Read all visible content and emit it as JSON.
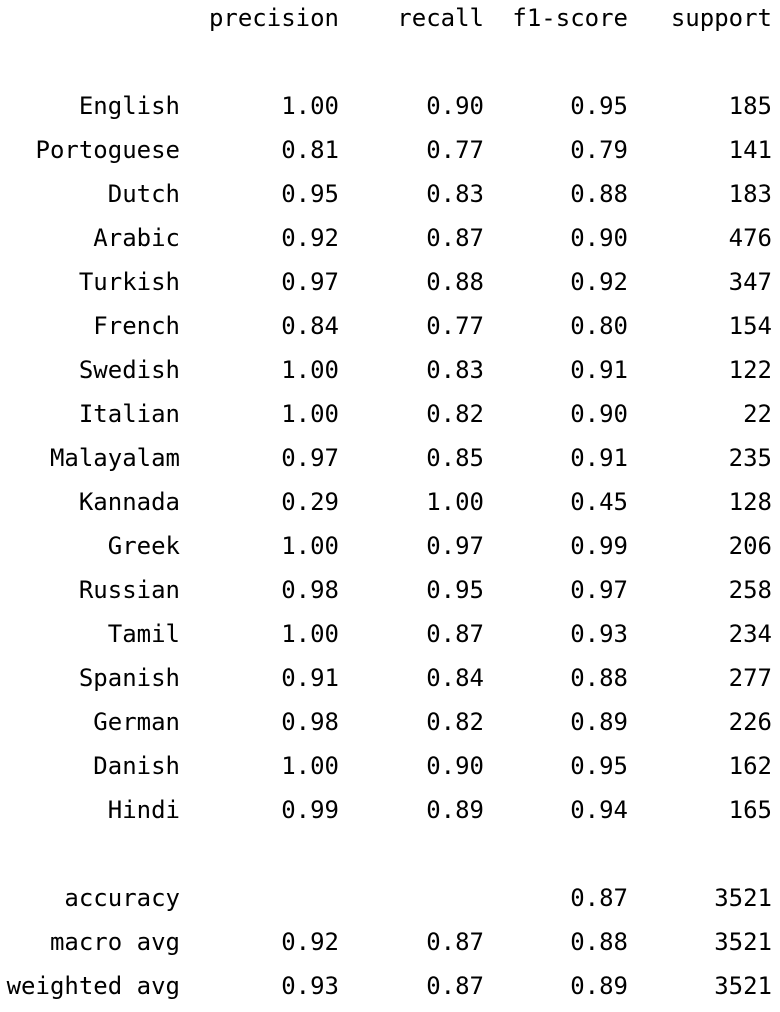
{
  "header": {
    "precision": "precision",
    "recall": "recall",
    "f1_score": "f1-score",
    "support": "support"
  },
  "rows": [
    {
      "label": "English",
      "precision": "1.00",
      "recall": "0.90",
      "f1": "0.95",
      "support": "185"
    },
    {
      "label": "Portoguese",
      "precision": "0.81",
      "recall": "0.77",
      "f1": "0.79",
      "support": "141"
    },
    {
      "label": "Dutch",
      "precision": "0.95",
      "recall": "0.83",
      "f1": "0.88",
      "support": "183"
    },
    {
      "label": "Arabic",
      "precision": "0.92",
      "recall": "0.87",
      "f1": "0.90",
      "support": "476"
    },
    {
      "label": "Turkish",
      "precision": "0.97",
      "recall": "0.88",
      "f1": "0.92",
      "support": "347"
    },
    {
      "label": "French",
      "precision": "0.84",
      "recall": "0.77",
      "f1": "0.80",
      "support": "154"
    },
    {
      "label": "Swedish",
      "precision": "1.00",
      "recall": "0.83",
      "f1": "0.91",
      "support": "122"
    },
    {
      "label": "Italian",
      "precision": "1.00",
      "recall": "0.82",
      "f1": "0.90",
      "support": "22"
    },
    {
      "label": "Malayalam",
      "precision": "0.97",
      "recall": "0.85",
      "f1": "0.91",
      "support": "235"
    },
    {
      "label": "Kannada",
      "precision": "0.29",
      "recall": "1.00",
      "f1": "0.45",
      "support": "128"
    },
    {
      "label": "Greek",
      "precision": "1.00",
      "recall": "0.97",
      "f1": "0.99",
      "support": "206"
    },
    {
      "label": "Russian",
      "precision": "0.98",
      "recall": "0.95",
      "f1": "0.97",
      "support": "258"
    },
    {
      "label": "Tamil",
      "precision": "1.00",
      "recall": "0.87",
      "f1": "0.93",
      "support": "234"
    },
    {
      "label": "Spanish",
      "precision": "0.91",
      "recall": "0.84",
      "f1": "0.88",
      "support": "277"
    },
    {
      "label": "German",
      "precision": "0.98",
      "recall": "0.82",
      "f1": "0.89",
      "support": "226"
    },
    {
      "label": "Danish",
      "precision": "1.00",
      "recall": "0.90",
      "f1": "0.95",
      "support": "162"
    },
    {
      "label": "Hindi",
      "precision": "0.99",
      "recall": "0.89",
      "f1": "0.94",
      "support": "165"
    }
  ],
  "summary": [
    {
      "label": "accuracy",
      "precision": "",
      "recall": "",
      "f1": "0.87",
      "support": "3521"
    },
    {
      "label": "macro avg",
      "precision": "0.92",
      "recall": "0.87",
      "f1": "0.88",
      "support": "3521"
    },
    {
      "label": "weighted avg",
      "precision": "0.93",
      "recall": "0.87",
      "f1": "0.89",
      "support": "3521"
    }
  ]
}
